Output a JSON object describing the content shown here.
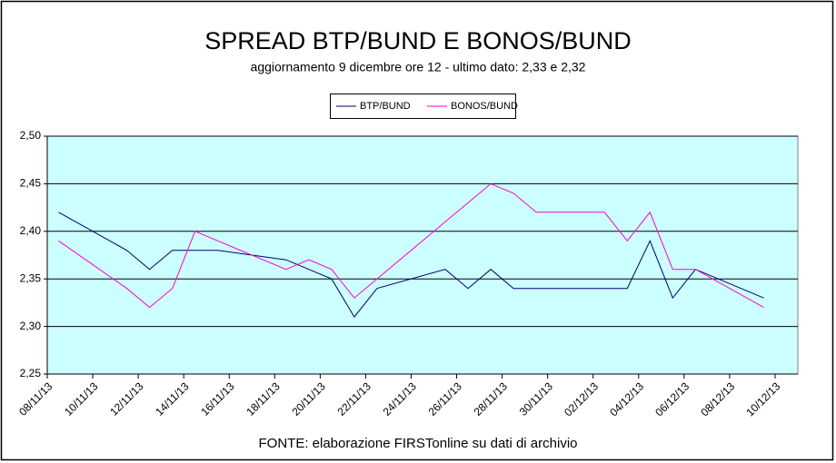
{
  "chart_data": {
    "type": "line",
    "title": "SPREAD BTP/BUND E BONOS/BUND",
    "subtitle": "aggiornamento 9 dicembre ore 12 - ultimo dato: 2,33 e 2,32",
    "source": "FONTE: elaborazione FIRSTonline su dati di archivio",
    "x": [
      "08/11/13",
      "11/11/13",
      "12/11/13",
      "13/11/13",
      "14/11/13",
      "15/11/13",
      "18/11/13",
      "19/11/13",
      "20/11/13",
      "21/11/13",
      "22/11/13",
      "25/11/13",
      "26/11/13",
      "27/11/13",
      "28/11/13",
      "29/11/13",
      "02/12/13",
      "03/12/13",
      "04/12/13",
      "05/12/13",
      "06/12/13",
      "09/12/13"
    ],
    "series": [
      {
        "name": "BTP/BUND",
        "color": "#000066",
        "values": [
          2.42,
          2.38,
          2.36,
          2.38,
          2.38,
          2.38,
          2.37,
          2.36,
          2.35,
          2.31,
          2.34,
          2.36,
          2.34,
          2.36,
          2.34,
          2.34,
          2.34,
          2.34,
          2.39,
          2.33,
          2.36,
          2.33
        ]
      },
      {
        "name": "BONOS/BUND",
        "color": "#ff00cc",
        "values": [
          2.39,
          2.34,
          2.32,
          2.34,
          2.4,
          2.39,
          2.36,
          2.37,
          2.36,
          2.33,
          2.35,
          2.41,
          2.43,
          2.45,
          2.44,
          2.42,
          2.42,
          2.39,
          2.42,
          2.36,
          2.36,
          2.32
        ]
      }
    ],
    "xticks": [
      "08/11/13",
      "10/11/13",
      "12/11/13",
      "14/11/13",
      "16/11/13",
      "18/11/13",
      "20/11/13",
      "22/11/13",
      "24/11/13",
      "26/11/13",
      "28/11/13",
      "30/11/13",
      "02/12/13",
      "04/12/13",
      "06/12/13",
      "08/12/13",
      "10/12/13"
    ],
    "ylim": [
      2.25,
      2.5
    ],
    "yticks": [
      {
        "value": 2.25,
        "label": "2,25"
      },
      {
        "value": 2.3,
        "label": "2,30"
      },
      {
        "value": 2.35,
        "label": "2,35"
      },
      {
        "value": 2.4,
        "label": "2,40"
      },
      {
        "value": 2.45,
        "label": "2,45"
      },
      {
        "value": 2.5,
        "label": "2,50"
      }
    ],
    "grid": true,
    "plot_background": "#ccffff"
  }
}
